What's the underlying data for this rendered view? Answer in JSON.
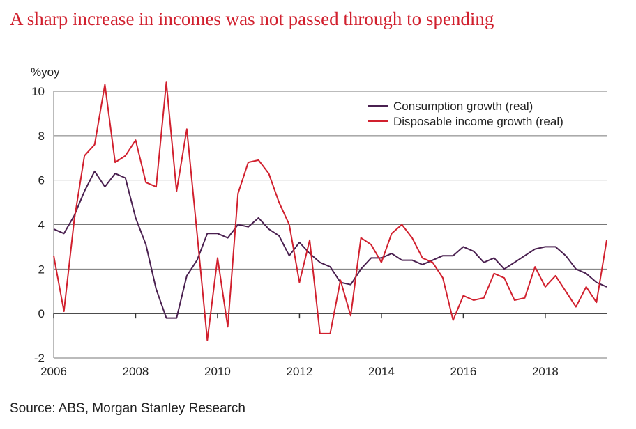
{
  "title": "A sharp increase in incomes was not passed through to spending",
  "source": "Source: ABS, Morgan Stanley Research",
  "chart_data": {
    "type": "line",
    "ylabel": "%yoy",
    "xlabel": "",
    "ylim": [
      -2,
      10
    ],
    "xlim": [
      2006.0,
      2019.5
    ],
    "yticks": [
      -2,
      0,
      2,
      4,
      6,
      8,
      10
    ],
    "xticks": [
      2006,
      2008,
      2010,
      2012,
      2014,
      2016,
      2018
    ],
    "grid": "horizontal",
    "legend_position": "top-right",
    "series": [
      {
        "name": "Consumption growth (real)",
        "color": "#4a2050",
        "x": [
          2006.0,
          2006.25,
          2006.5,
          2006.75,
          2007.0,
          2007.25,
          2007.5,
          2007.75,
          2008.0,
          2008.25,
          2008.5,
          2008.75,
          2009.0,
          2009.25,
          2009.5,
          2009.75,
          2010.0,
          2010.25,
          2010.5,
          2010.75,
          2011.0,
          2011.25,
          2011.5,
          2011.75,
          2012.0,
          2012.25,
          2012.5,
          2012.75,
          2013.0,
          2013.25,
          2013.5,
          2013.75,
          2014.0,
          2014.25,
          2014.5,
          2014.75,
          2015.0,
          2015.25,
          2015.5,
          2015.75,
          2016.0,
          2016.25,
          2016.5,
          2016.75,
          2017.0,
          2017.25,
          2017.5,
          2017.75,
          2018.0,
          2018.25,
          2018.5,
          2018.75,
          2019.0,
          2019.25,
          2019.5
        ],
        "y": [
          3.8,
          3.6,
          4.4,
          5.5,
          6.4,
          5.7,
          6.3,
          6.1,
          4.3,
          3.1,
          1.1,
          -0.2,
          -0.2,
          1.7,
          2.4,
          3.6,
          3.6,
          3.4,
          4.0,
          3.9,
          4.3,
          3.8,
          3.5,
          2.6,
          3.2,
          2.7,
          2.3,
          2.1,
          1.4,
          1.3,
          2.0,
          2.5,
          2.5,
          2.7,
          2.4,
          2.4,
          2.2,
          2.4,
          2.6,
          2.6,
          3.0,
          2.8,
          2.3,
          2.5,
          2.0,
          2.3,
          2.6,
          2.9,
          3.0,
          3.0,
          2.6,
          2.0,
          1.8,
          1.4,
          1.2
        ]
      },
      {
        "name": "Disposable income growth (real)",
        "color": "#d1202e",
        "x": [
          2006.0,
          2006.25,
          2006.5,
          2006.75,
          2007.0,
          2007.25,
          2007.5,
          2007.75,
          2008.0,
          2008.25,
          2008.5,
          2008.75,
          2009.0,
          2009.25,
          2009.5,
          2009.75,
          2010.0,
          2010.25,
          2010.5,
          2010.75,
          2011.0,
          2011.25,
          2011.5,
          2011.75,
          2012.0,
          2012.25,
          2012.5,
          2012.75,
          2013.0,
          2013.25,
          2013.5,
          2013.75,
          2014.0,
          2014.25,
          2014.5,
          2014.75,
          2015.0,
          2015.25,
          2015.5,
          2015.75,
          2016.0,
          2016.25,
          2016.5,
          2016.75,
          2017.0,
          2017.25,
          2017.5,
          2017.75,
          2018.0,
          2018.25,
          2018.5,
          2018.75,
          2019.0,
          2019.25,
          2019.5
        ],
        "y": [
          2.6,
          0.1,
          4.2,
          7.1,
          7.6,
          10.3,
          6.8,
          7.1,
          7.8,
          5.9,
          5.7,
          10.4,
          5.5,
          8.3,
          3.6,
          -1.2,
          2.5,
          -0.6,
          5.4,
          6.8,
          6.9,
          6.3,
          5.0,
          4.0,
          1.4,
          3.3,
          -0.9,
          -0.9,
          1.5,
          -0.1,
          3.4,
          3.1,
          2.3,
          3.6,
          4.0,
          3.4,
          2.5,
          2.3,
          1.6,
          -0.3,
          0.8,
          0.6,
          0.7,
          1.8,
          1.6,
          0.6,
          0.7,
          2.1,
          1.2,
          1.7,
          1.0,
          0.3,
          1.2,
          0.5,
          3.3
        ]
      }
    ]
  }
}
